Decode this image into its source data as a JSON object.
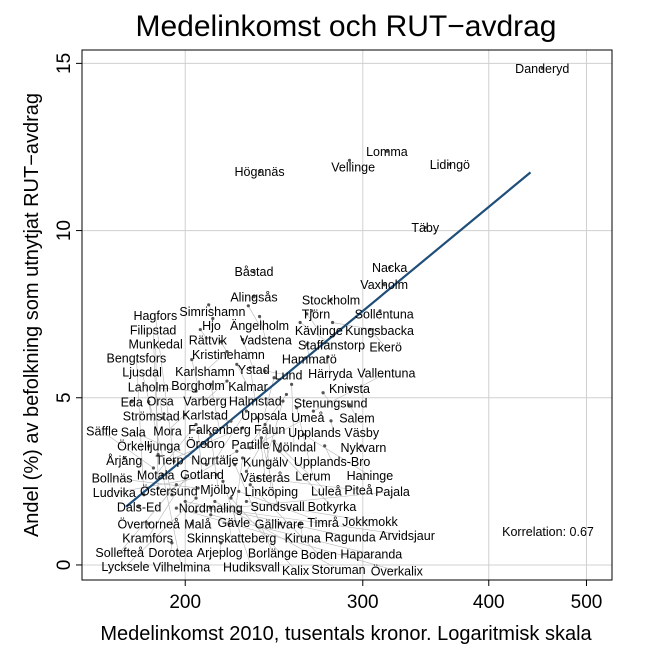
{
  "chart_data": {
    "type": "scatter",
    "title": "Medelinkomst och RUT−avdrag",
    "xlabel": "Medelinkomst 2010, tusentals kronor. Logaritmisk skala",
    "ylabel": "Andel (%) av befolkning som utnytjat RUT−avdrag",
    "xscale": "log",
    "xlim": [
      158,
      530
    ],
    "ylim": [
      -0.45,
      15.4
    ],
    "xticks": [
      200,
      300,
      400,
      500
    ],
    "yticks": [
      0,
      5,
      10,
      15
    ],
    "grid": true,
    "annotation": "Korrelation: 0.67",
    "fit_line": {
      "x": [
        174.7,
        440
      ],
      "y": [
        1.74,
        11.74
      ],
      "color": "#1f4e79"
    },
    "points": [
      {
        "label": "Danderyd",
        "x": 452,
        "y": 14.85
      },
      {
        "label": "Lomma",
        "x": 317,
        "y": 12.37
      },
      {
        "label": "Vellinge",
        "x": 291,
        "y": 12.1
      },
      {
        "label": "Lidingö",
        "x": 366,
        "y": 11.98
      },
      {
        "label": "Höganäs",
        "x": 237,
        "y": 11.77
      },
      {
        "label": "Täby",
        "x": 346,
        "y": 10.09
      },
      {
        "label": "Båstad",
        "x": 234,
        "y": 8.77
      },
      {
        "label": "Nacka",
        "x": 319,
        "y": 8.89
      },
      {
        "label": "Vaxholm",
        "x": 315,
        "y": 8.38
      },
      {
        "label": "Alingsås",
        "x": 234,
        "y": 8.02
      },
      {
        "label": "Simrishamn",
        "x": 211,
        "y": 7.78
      },
      {
        "label": "Ängelholm",
        "x": 231,
        "y": 7.75
      },
      {
        "label": "Stockholm",
        "x": 279,
        "y": 7.93
      },
      {
        "label": "Tjörn",
        "x": 267,
        "y": 7.6
      },
      {
        "label": "Sollentuna",
        "x": 312,
        "y": 7.6
      },
      {
        "label": "Vadstena",
        "x": 237,
        "y": 7.43
      },
      {
        "label": "Kävlinge",
        "x": 264,
        "y": 7.51
      },
      {
        "label": "Hjo",
        "x": 213,
        "y": 7.37
      },
      {
        "label": "Staffanstorp",
        "x": 260,
        "y": 7.25
      },
      {
        "label": "Kungsbacka",
        "x": 280,
        "y": 7.25
      },
      {
        "label": "Ekerö",
        "x": 305,
        "y": 7.04
      },
      {
        "label": "Rättvik",
        "x": 207,
        "y": 7.04
      },
      {
        "label": "Kristinehamn",
        "x": 217,
        "y": 6.68
      },
      {
        "label": "Ystad",
        "x": 228,
        "y": 6.74
      },
      {
        "label": "Hammarö",
        "x": 264,
        "y": 6.59
      },
      {
        "label": "Karlshamn",
        "x": 220,
        "y": 6.38
      },
      {
        "label": "Borgholm",
        "x": 203,
        "y": 6.14
      },
      {
        "label": "Härryda",
        "x": 277,
        "y": 6.23
      },
      {
        "label": "Knivsta",
        "x": 291,
        "y": 5.27
      },
      {
        "label": "Stenungsund",
        "x": 274,
        "y": 5.15
      },
      {
        "label": "Eda",
        "x": 177,
        "y": 4.88
      },
      {
        "label": "Strömstad",
        "x": 184,
        "y": 4.88
      },
      {
        "label": "Salem",
        "x": 291,
        "y": 4.79
      },
      {
        "label": "Upplands Väsby",
        "x": 279,
        "y": 4.31
      },
      {
        "label": "Nykvarn",
        "x": 299,
        "y": 3.56
      },
      {
        "label": "Upplands-Bro",
        "x": 275,
        "y": 3.56
      },
      {
        "label": "Örkelljunga",
        "x": 184,
        "y": 3.56
      },
      {
        "label": "Årjäng",
        "x": 174,
        "y": 3.2
      },
      {
        "label": "Dals-Ed",
        "x": 180,
        "y": 1.74
      },
      {
        "label": "Nordmaling",
        "x": 212,
        "y": 1.71
      },
      {
        "label": "Övertorneå",
        "x": 184,
        "y": 1.23
      },
      {
        "label": "Malå",
        "x": 203,
        "y": 1.23
      },
      {
        "label": "Skinnskatteberg",
        "x": 221,
        "y": 1.23
      },
      {
        "label": "Gällivare",
        "x": 248,
        "y": 1.23
      },
      {
        "label": "Kiruna",
        "x": 260,
        "y": 1.23
      },
      {
        "label": "Dorotea",
        "x": 194,
        "y": 0.66
      },
      {
        "label": "Arjeplog",
        "x": 217,
        "y": 0.66
      },
      {
        "label": "Kalmar",
        "x": 225,
        "y": 6.0
      },
      {
        "label": "Halmstad",
        "x": 232,
        "y": 5.9
      },
      {
        "label": "Lund",
        "x": 240,
        "y": 5.8
      },
      {
        "label": "Uppsala",
        "x": 245,
        "y": 5.6
      },
      {
        "label": "Varberg",
        "x": 220,
        "y": 5.5
      },
      {
        "label": "Falkenberg",
        "x": 212,
        "y": 5.4
      },
      {
        "label": "Laholm",
        "x": 205,
        "y": 5.2
      },
      {
        "label": "Mölndal",
        "x": 255,
        "y": 5.4
      },
      {
        "label": "Partille",
        "x": 252,
        "y": 5.1
      },
      {
        "label": "Kungälv",
        "x": 250,
        "y": 4.9
      },
      {
        "label": "Lerum",
        "x": 258,
        "y": 4.7
      },
      {
        "label": "Vallentuna",
        "x": 268,
        "y": 4.6
      },
      {
        "label": "Norrtälje",
        "x": 230,
        "y": 4.6
      },
      {
        "label": "Västerås",
        "x": 236,
        "y": 4.4
      },
      {
        "label": "Linköping",
        "x": 240,
        "y": 4.2
      },
      {
        "label": "Örebro",
        "x": 228,
        "y": 4.1
      },
      {
        "label": "Karlstad",
        "x": 222,
        "y": 4.3
      },
      {
        "label": "Mora",
        "x": 200,
        "y": 4.5
      },
      {
        "label": "Orsa",
        "x": 190,
        "y": 4.4
      },
      {
        "label": "Gotland",
        "x": 206,
        "y": 4.0
      },
      {
        "label": "Motala",
        "x": 205,
        "y": 4.2
      },
      {
        "label": "Mjölby",
        "x": 212,
        "y": 3.9
      },
      {
        "label": "Tierp",
        "x": 210,
        "y": 3.6
      },
      {
        "label": "Sundsvall",
        "x": 238,
        "y": 3.8
      },
      {
        "label": "Umeå",
        "x": 232,
        "y": 3.5
      },
      {
        "label": "Luleå",
        "x": 245,
        "y": 3.7
      },
      {
        "label": "Östersund",
        "x": 225,
        "y": 3.4
      },
      {
        "label": "Haninge",
        "x": 262,
        "y": 3.9
      },
      {
        "label": "Botkyrka",
        "x": 248,
        "y": 3.4
      },
      {
        "label": "Gävle",
        "x": 228,
        "y": 3.2
      },
      {
        "label": "Borlänge",
        "x": 224,
        "y": 3.0
      },
      {
        "label": "Falun",
        "x": 230,
        "y": 2.8
      },
      {
        "label": "Sala",
        "x": 210,
        "y": 3.0
      },
      {
        "label": "Ludvika",
        "x": 215,
        "y": 2.7
      },
      {
        "label": "Kramfors",
        "x": 200,
        "y": 2.6
      },
      {
        "label": "Sollefteå",
        "x": 196,
        "y": 2.4
      },
      {
        "label": "Vilhelmina",
        "x": 190,
        "y": 2.7
      },
      {
        "label": "Bollnäs",
        "x": 206,
        "y": 2.3
      },
      {
        "label": "Hudiksvall",
        "x": 218,
        "y": 2.5
      },
      {
        "label": "Timrå",
        "x": 226,
        "y": 2.2
      },
      {
        "label": "Boden",
        "x": 232,
        "y": 2.4
      },
      {
        "label": "Kalix",
        "x": 222,
        "y": 2.0
      },
      {
        "label": "Piteå",
        "x": 236,
        "y": 2.6
      },
      {
        "label": "Lycksele",
        "x": 205,
        "y": 2.0
      },
      {
        "label": "Ljusdal",
        "x": 194,
        "y": 2.1
      },
      {
        "label": "Bengtsfors",
        "x": 182,
        "y": 2.1
      },
      {
        "label": "Munkedal",
        "x": 188,
        "y": 2.3
      },
      {
        "label": "Säffle",
        "x": 186,
        "y": 2.9
      },
      {
        "label": "Filipstad",
        "x": 188,
        "y": 3.3
      },
      {
        "label": "Hagfors",
        "x": 195,
        "y": 3.1
      },
      {
        "label": "Ragunda",
        "x": 200,
        "y": 1.9
      },
      {
        "label": "Storuman",
        "x": 214,
        "y": 1.9
      },
      {
        "label": "Jokkmokk",
        "x": 230,
        "y": 1.9
      },
      {
        "label": "Haparanda",
        "x": 212,
        "y": 1.5
      },
      {
        "label": "Pajala",
        "x": 205,
        "y": 1.6
      },
      {
        "label": "Arvidsjaur",
        "x": 226,
        "y": 1.6
      },
      {
        "label": "Överkalix",
        "x": 196,
        "y": 1.7
      }
    ]
  }
}
